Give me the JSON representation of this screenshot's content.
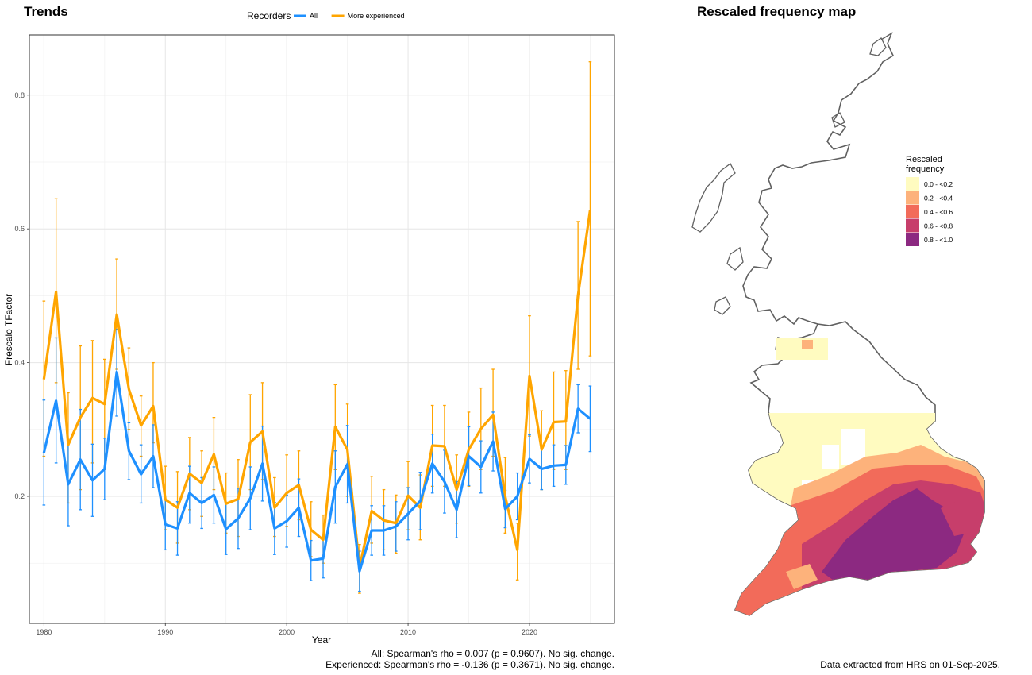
{
  "trends_title": "Trends",
  "map_title": "Rescaled frequency map",
  "legend": {
    "title": "Recorders"
  },
  "chart_data": {
    "type": "line",
    "xlabel": "Year",
    "ylabel": "Frescalo TFactor",
    "xlim": [
      1978.8,
      2027.0
    ],
    "ylim": [
      0.01,
      0.89
    ],
    "xticks": [
      1980,
      1990,
      2000,
      2010,
      2020
    ],
    "yticks": [
      0.2,
      0.4,
      0.6,
      0.8
    ],
    "grid": true,
    "legend_position": "top",
    "x": [
      1980,
      1981,
      1982,
      1983,
      1984,
      1985,
      1986,
      1987,
      1988,
      1989,
      1990,
      1991,
      1992,
      1993,
      1994,
      1995,
      1996,
      1997,
      1998,
      1999,
      2000,
      2001,
      2002,
      2003,
      2004,
      2005,
      2006,
      2007,
      2008,
      2009,
      2010,
      2011,
      2012,
      2013,
      2014,
      2015,
      2016,
      2017,
      2018,
      2019,
      2020,
      2021,
      2022,
      2023,
      2024,
      2025
    ],
    "series": [
      {
        "name": "All",
        "color": "#1E90FF",
        "values": [
          0.265,
          0.343,
          0.218,
          0.255,
          0.224,
          0.241,
          0.386,
          0.268,
          0.233,
          0.26,
          0.158,
          0.152,
          0.205,
          0.19,
          0.202,
          0.151,
          0.167,
          0.197,
          0.249,
          0.152,
          0.163,
          0.183,
          0.104,
          0.107,
          0.214,
          0.248,
          0.088,
          0.149,
          0.149,
          0.155,
          0.174,
          0.193,
          0.249,
          0.222,
          0.18,
          0.26,
          0.244,
          0.282,
          0.181,
          0.2,
          0.256,
          0.241,
          0.246,
          0.247,
          0.331,
          0.316
        ],
        "lower": [
          0.187,
          0.25,
          0.156,
          0.18,
          0.17,
          0.195,
          0.32,
          0.225,
          0.19,
          0.213,
          0.12,
          0.112,
          0.16,
          0.152,
          0.16,
          0.113,
          0.122,
          0.15,
          0.193,
          0.113,
          0.124,
          0.14,
          0.074,
          0.078,
          0.16,
          0.19,
          0.058,
          0.112,
          0.112,
          0.118,
          0.135,
          0.15,
          0.205,
          0.175,
          0.138,
          0.216,
          0.205,
          0.238,
          0.153,
          0.165,
          0.22,
          0.21,
          0.215,
          0.218,
          0.295,
          0.267
        ],
        "upper": [
          0.344,
          0.437,
          0.28,
          0.33,
          0.278,
          0.287,
          0.45,
          0.31,
          0.277,
          0.307,
          0.195,
          0.192,
          0.245,
          0.228,
          0.244,
          0.189,
          0.212,
          0.244,
          0.305,
          0.191,
          0.202,
          0.226,
          0.134,
          0.136,
          0.268,
          0.306,
          0.118,
          0.186,
          0.186,
          0.192,
          0.213,
          0.236,
          0.293,
          0.269,
          0.222,
          0.304,
          0.283,
          0.326,
          0.209,
          0.235,
          0.292,
          0.272,
          0.277,
          0.276,
          0.367,
          0.365
        ]
      },
      {
        "name": "More experienced",
        "color": "#FFA500",
        "values": [
          0.375,
          0.506,
          0.277,
          0.318,
          0.347,
          0.338,
          0.472,
          0.36,
          0.306,
          0.335,
          0.195,
          0.183,
          0.234,
          0.22,
          0.263,
          0.189,
          0.196,
          0.281,
          0.297,
          0.183,
          0.205,
          0.217,
          0.15,
          0.135,
          0.304,
          0.27,
          0.094,
          0.178,
          0.164,
          0.16,
          0.201,
          0.183,
          0.276,
          0.275,
          0.21,
          0.27,
          0.301,
          0.322,
          0.2,
          0.12,
          0.38,
          0.27,
          0.311,
          0.312,
          0.5,
          0.628
        ],
        "lower": [
          0.26,
          0.37,
          0.19,
          0.21,
          0.25,
          0.24,
          0.39,
          0.3,
          0.26,
          0.28,
          0.15,
          0.13,
          0.18,
          0.17,
          0.21,
          0.145,
          0.14,
          0.21,
          0.225,
          0.14,
          0.155,
          0.165,
          0.11,
          0.1,
          0.24,
          0.2,
          0.055,
          0.13,
          0.12,
          0.115,
          0.15,
          0.135,
          0.215,
          0.215,
          0.16,
          0.215,
          0.24,
          0.26,
          0.145,
          0.075,
          0.29,
          0.21,
          0.24,
          0.24,
          0.39,
          0.41
        ],
        "upper": [
          0.492,
          0.645,
          0.355,
          0.425,
          0.433,
          0.405,
          0.555,
          0.422,
          0.35,
          0.4,
          0.245,
          0.237,
          0.288,
          0.268,
          0.318,
          0.235,
          0.255,
          0.352,
          0.37,
          0.228,
          0.262,
          0.268,
          0.192,
          0.172,
          0.367,
          0.338,
          0.128,
          0.23,
          0.21,
          0.202,
          0.252,
          0.232,
          0.336,
          0.336,
          0.262,
          0.326,
          0.362,
          0.39,
          0.258,
          0.16,
          0.47,
          0.328,
          0.386,
          0.388,
          0.611,
          0.85
        ]
      }
    ]
  },
  "map_legend": {
    "title_line1": "Rescaled",
    "title_line2": "frequency",
    "items": [
      {
        "label": "0.0 - <0.2",
        "color": "#FFFBC0"
      },
      {
        "label": "0.2 - <0.4",
        "color": "#FDB27B"
      },
      {
        "label": "0.4 - <0.6",
        "color": "#F26B5A"
      },
      {
        "label": "0.6 - <0.8",
        "color": "#C73E6B"
      },
      {
        "label": "0.8 - <1.0",
        "color": "#8C2981"
      }
    ]
  },
  "footer": {
    "all_stat": "All: Spearman's rho = 0.007 (p = 0.9607). No sig. change.",
    "exp_stat": "Experienced: Spearman's rho = -0.136 (p = 0.3671). No sig. change.",
    "source": "Data extracted from HRS on 01-Sep-2025."
  }
}
